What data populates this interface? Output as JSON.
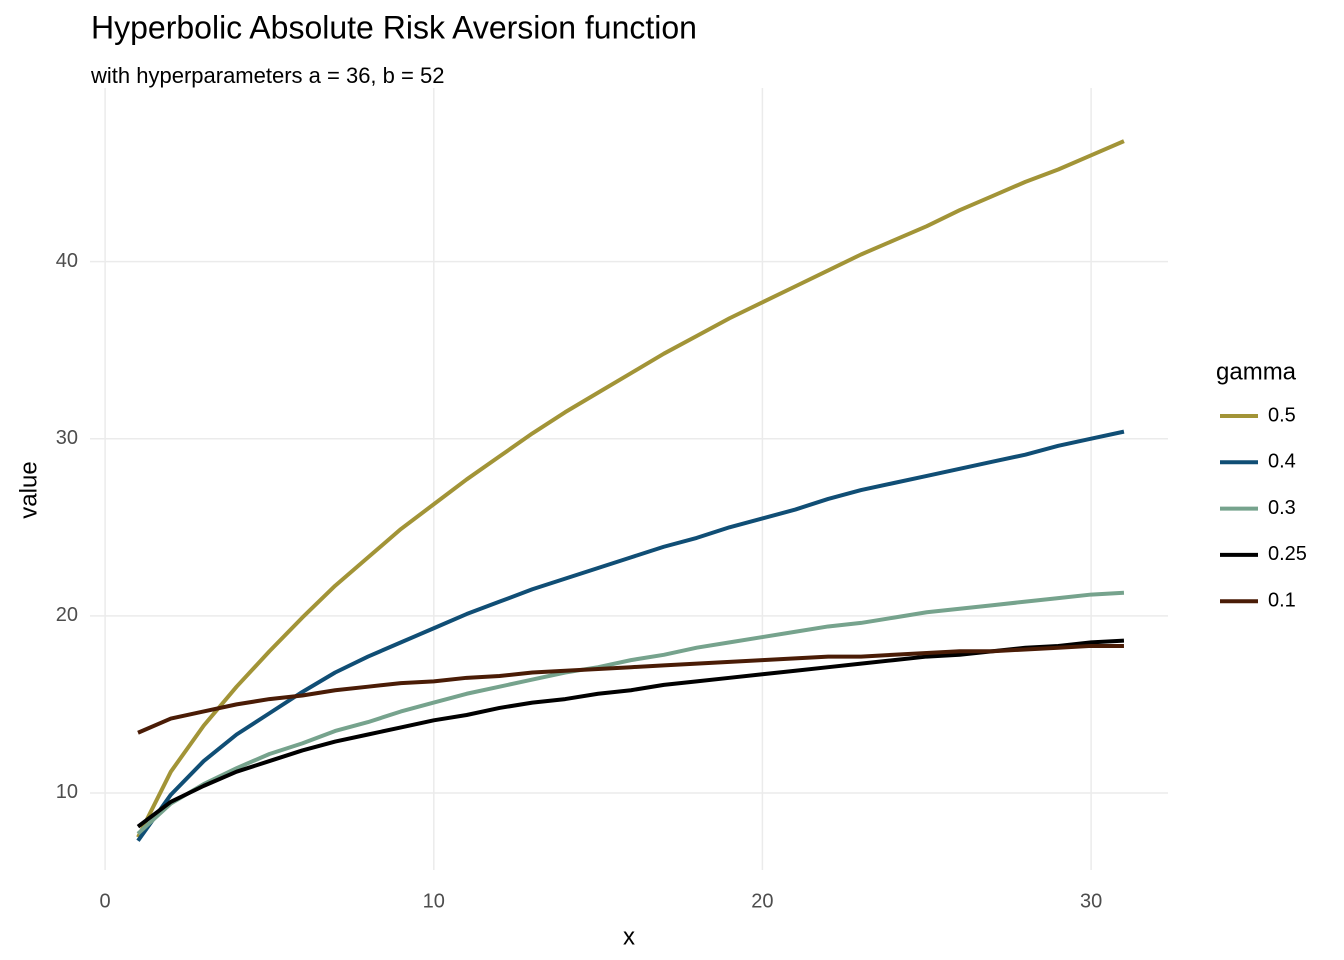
{
  "chart_data": {
    "type": "line",
    "title": "Hyperbolic Absolute Risk Aversion function",
    "subtitle": "with hyperparameters a = 36, b = 52",
    "x_label": "x",
    "y_label": "value",
    "legend_title": "gamma",
    "x": [
      1,
      2,
      3,
      4,
      5,
      6,
      7,
      8,
      9,
      10,
      11,
      12,
      13,
      14,
      15,
      16,
      17,
      18,
      19,
      20,
      21,
      22,
      23,
      24,
      25,
      26,
      27,
      28,
      29,
      30,
      31
    ],
    "series": [
      {
        "name": "0.5",
        "color": "#a29437",
        "values": [
          7.5,
          11.2,
          13.8,
          16.0,
          18.0,
          19.9,
          21.7,
          23.3,
          24.9,
          26.3,
          27.7,
          29.0,
          30.3,
          31.5,
          32.6,
          33.7,
          34.8,
          35.8,
          36.8,
          37.7,
          38.6,
          39.5,
          40.4,
          41.2,
          42.0,
          42.9,
          43.7,
          44.5,
          45.2,
          46.0,
          46.8
        ]
      },
      {
        "name": "0.4",
        "color": "#104e75",
        "values": [
          7.3,
          9.9,
          11.8,
          13.3,
          14.5,
          15.7,
          16.8,
          17.7,
          18.5,
          19.3,
          20.1,
          20.8,
          21.5,
          22.1,
          22.7,
          23.3,
          23.9,
          24.4,
          25.0,
          25.5,
          26.0,
          26.6,
          27.1,
          27.5,
          27.9,
          28.3,
          28.7,
          29.1,
          29.6,
          30.0,
          30.4
        ]
      },
      {
        "name": "0.3",
        "color": "#76a38d",
        "values": [
          7.7,
          9.4,
          10.5,
          11.4,
          12.2,
          12.8,
          13.5,
          14.0,
          14.6,
          15.1,
          15.6,
          16.0,
          16.4,
          16.8,
          17.1,
          17.5,
          17.8,
          18.2,
          18.5,
          18.8,
          19.1,
          19.4,
          19.6,
          19.9,
          20.2,
          20.4,
          20.6,
          20.8,
          21.0,
          21.2,
          21.3
        ]
      },
      {
        "name": "0.25",
        "color": "#000000",
        "values": [
          8.1,
          9.5,
          10.4,
          11.2,
          11.8,
          12.4,
          12.9,
          13.3,
          13.7,
          14.1,
          14.4,
          14.8,
          15.1,
          15.3,
          15.6,
          15.8,
          16.1,
          16.3,
          16.5,
          16.7,
          16.9,
          17.1,
          17.3,
          17.5,
          17.7,
          17.8,
          18.0,
          18.2,
          18.3,
          18.5,
          18.6
        ]
      },
      {
        "name": "0.1",
        "color": "#4a1c06",
        "values": [
          13.4,
          14.2,
          14.6,
          15.0,
          15.3,
          15.5,
          15.8,
          16.0,
          16.2,
          16.3,
          16.5,
          16.6,
          16.8,
          16.9,
          17.0,
          17.1,
          17.2,
          17.3,
          17.4,
          17.5,
          17.6,
          17.7,
          17.7,
          17.8,
          17.9,
          18.0,
          18.0,
          18.1,
          18.2,
          18.3,
          18.3
        ]
      }
    ],
    "xlim": [
      -0.46,
      32.34
    ],
    "ylim": [
      5.65,
      49.8
    ],
    "xticks": [
      0,
      10,
      20,
      30
    ],
    "yticks": [
      10,
      20,
      30,
      40
    ],
    "grid": true,
    "legend_position": "right"
  }
}
